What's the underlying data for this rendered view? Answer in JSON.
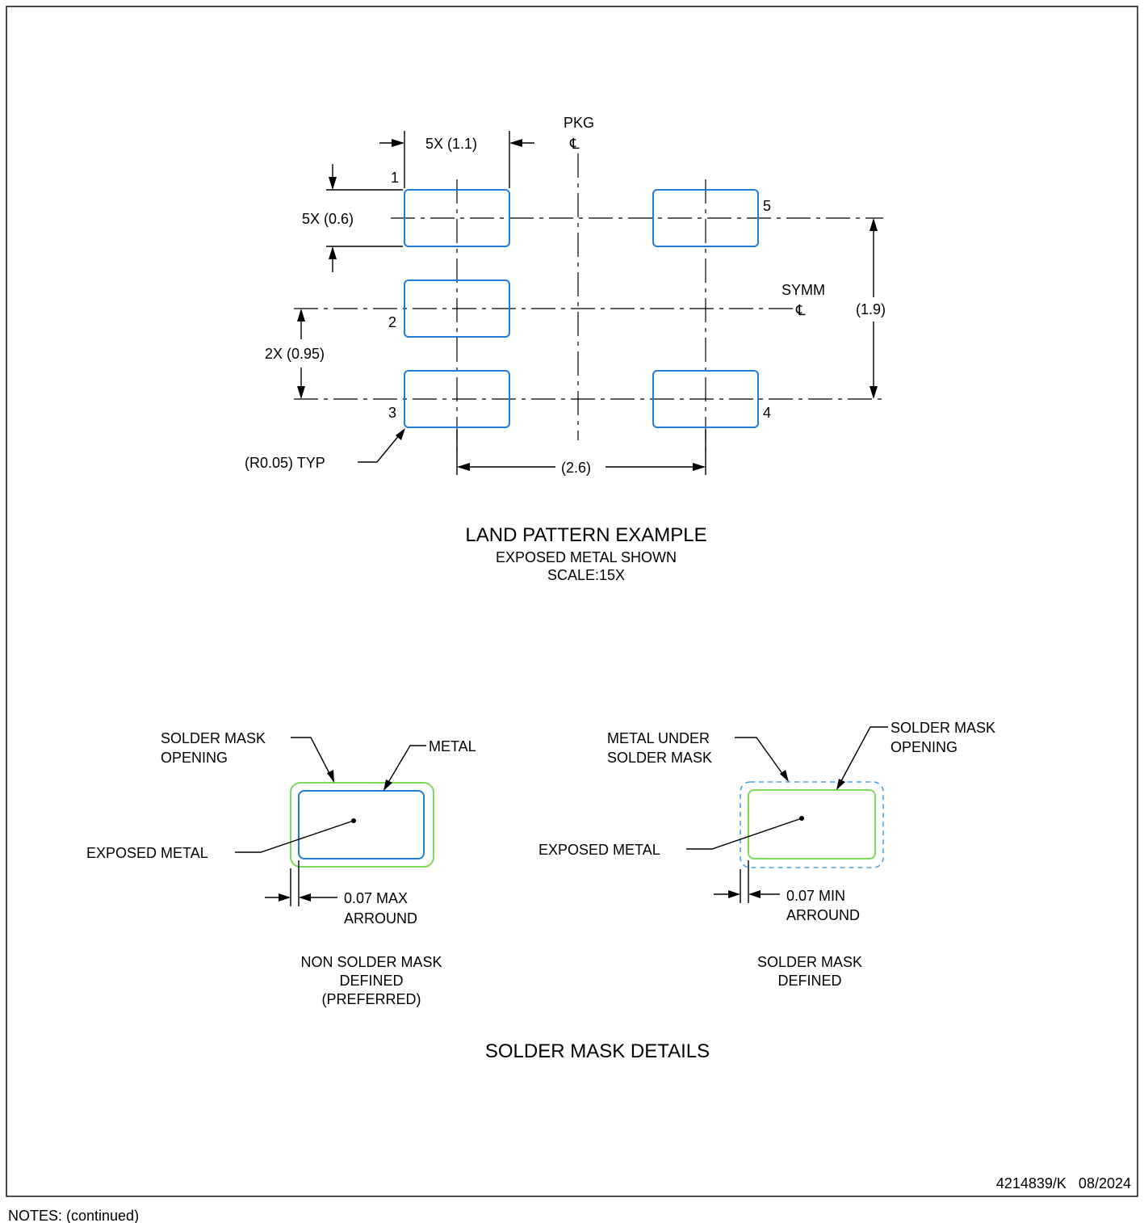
{
  "land_pattern": {
    "dim_pad_width": "5X (1.1)",
    "dim_pad_height": "5X (0.6)",
    "pkg_label": "PKG",
    "centerline_symbol": "℄",
    "symm_label": "SYMM",
    "dim_total_height": "(1.9)",
    "dim_pitch": "2X (0.95)",
    "dim_corner_radius": "(R0.05) TYP",
    "dim_column_spacing": "(2.6)",
    "pins": [
      "1",
      "2",
      "3",
      "4",
      "5"
    ],
    "title": "LAND PATTERN EXAMPLE",
    "subtitle": "EXPOSED METAL SHOWN",
    "scale": "SCALE:15X"
  },
  "solder_mask_details": {
    "nsmd": {
      "opening_label_1": "SOLDER MASK",
      "opening_label_2": "OPENING",
      "metal_label": "METAL",
      "exposed_label": "EXPOSED METAL",
      "dim_line_1": "0.07 MAX",
      "dim_line_2": "ARROUND",
      "caption_1": "NON SOLDER MASK",
      "caption_2": "DEFINED",
      "caption_3": "(PREFERRED)"
    },
    "smd": {
      "metal_under_label_1": "METAL UNDER",
      "metal_under_label_2": "SOLDER MASK",
      "opening_label_1": "SOLDER MASK",
      "opening_label_2": "OPENING",
      "exposed_label": "EXPOSED METAL",
      "dim_line_1": "0.07 MIN",
      "dim_line_2": "ARROUND",
      "caption_1": "SOLDER MASK",
      "caption_2": "DEFINED"
    },
    "title": "SOLDER MASK DETAILS"
  },
  "footer": {
    "doc_number": "4214839/K   08/2024",
    "notes_label": "NOTES: (continued)"
  },
  "colors": {
    "pad_outline": "#1f7fd6",
    "solder_mask_opening": "#7ed957",
    "metal_under_mask": "#4aa3e8"
  }
}
